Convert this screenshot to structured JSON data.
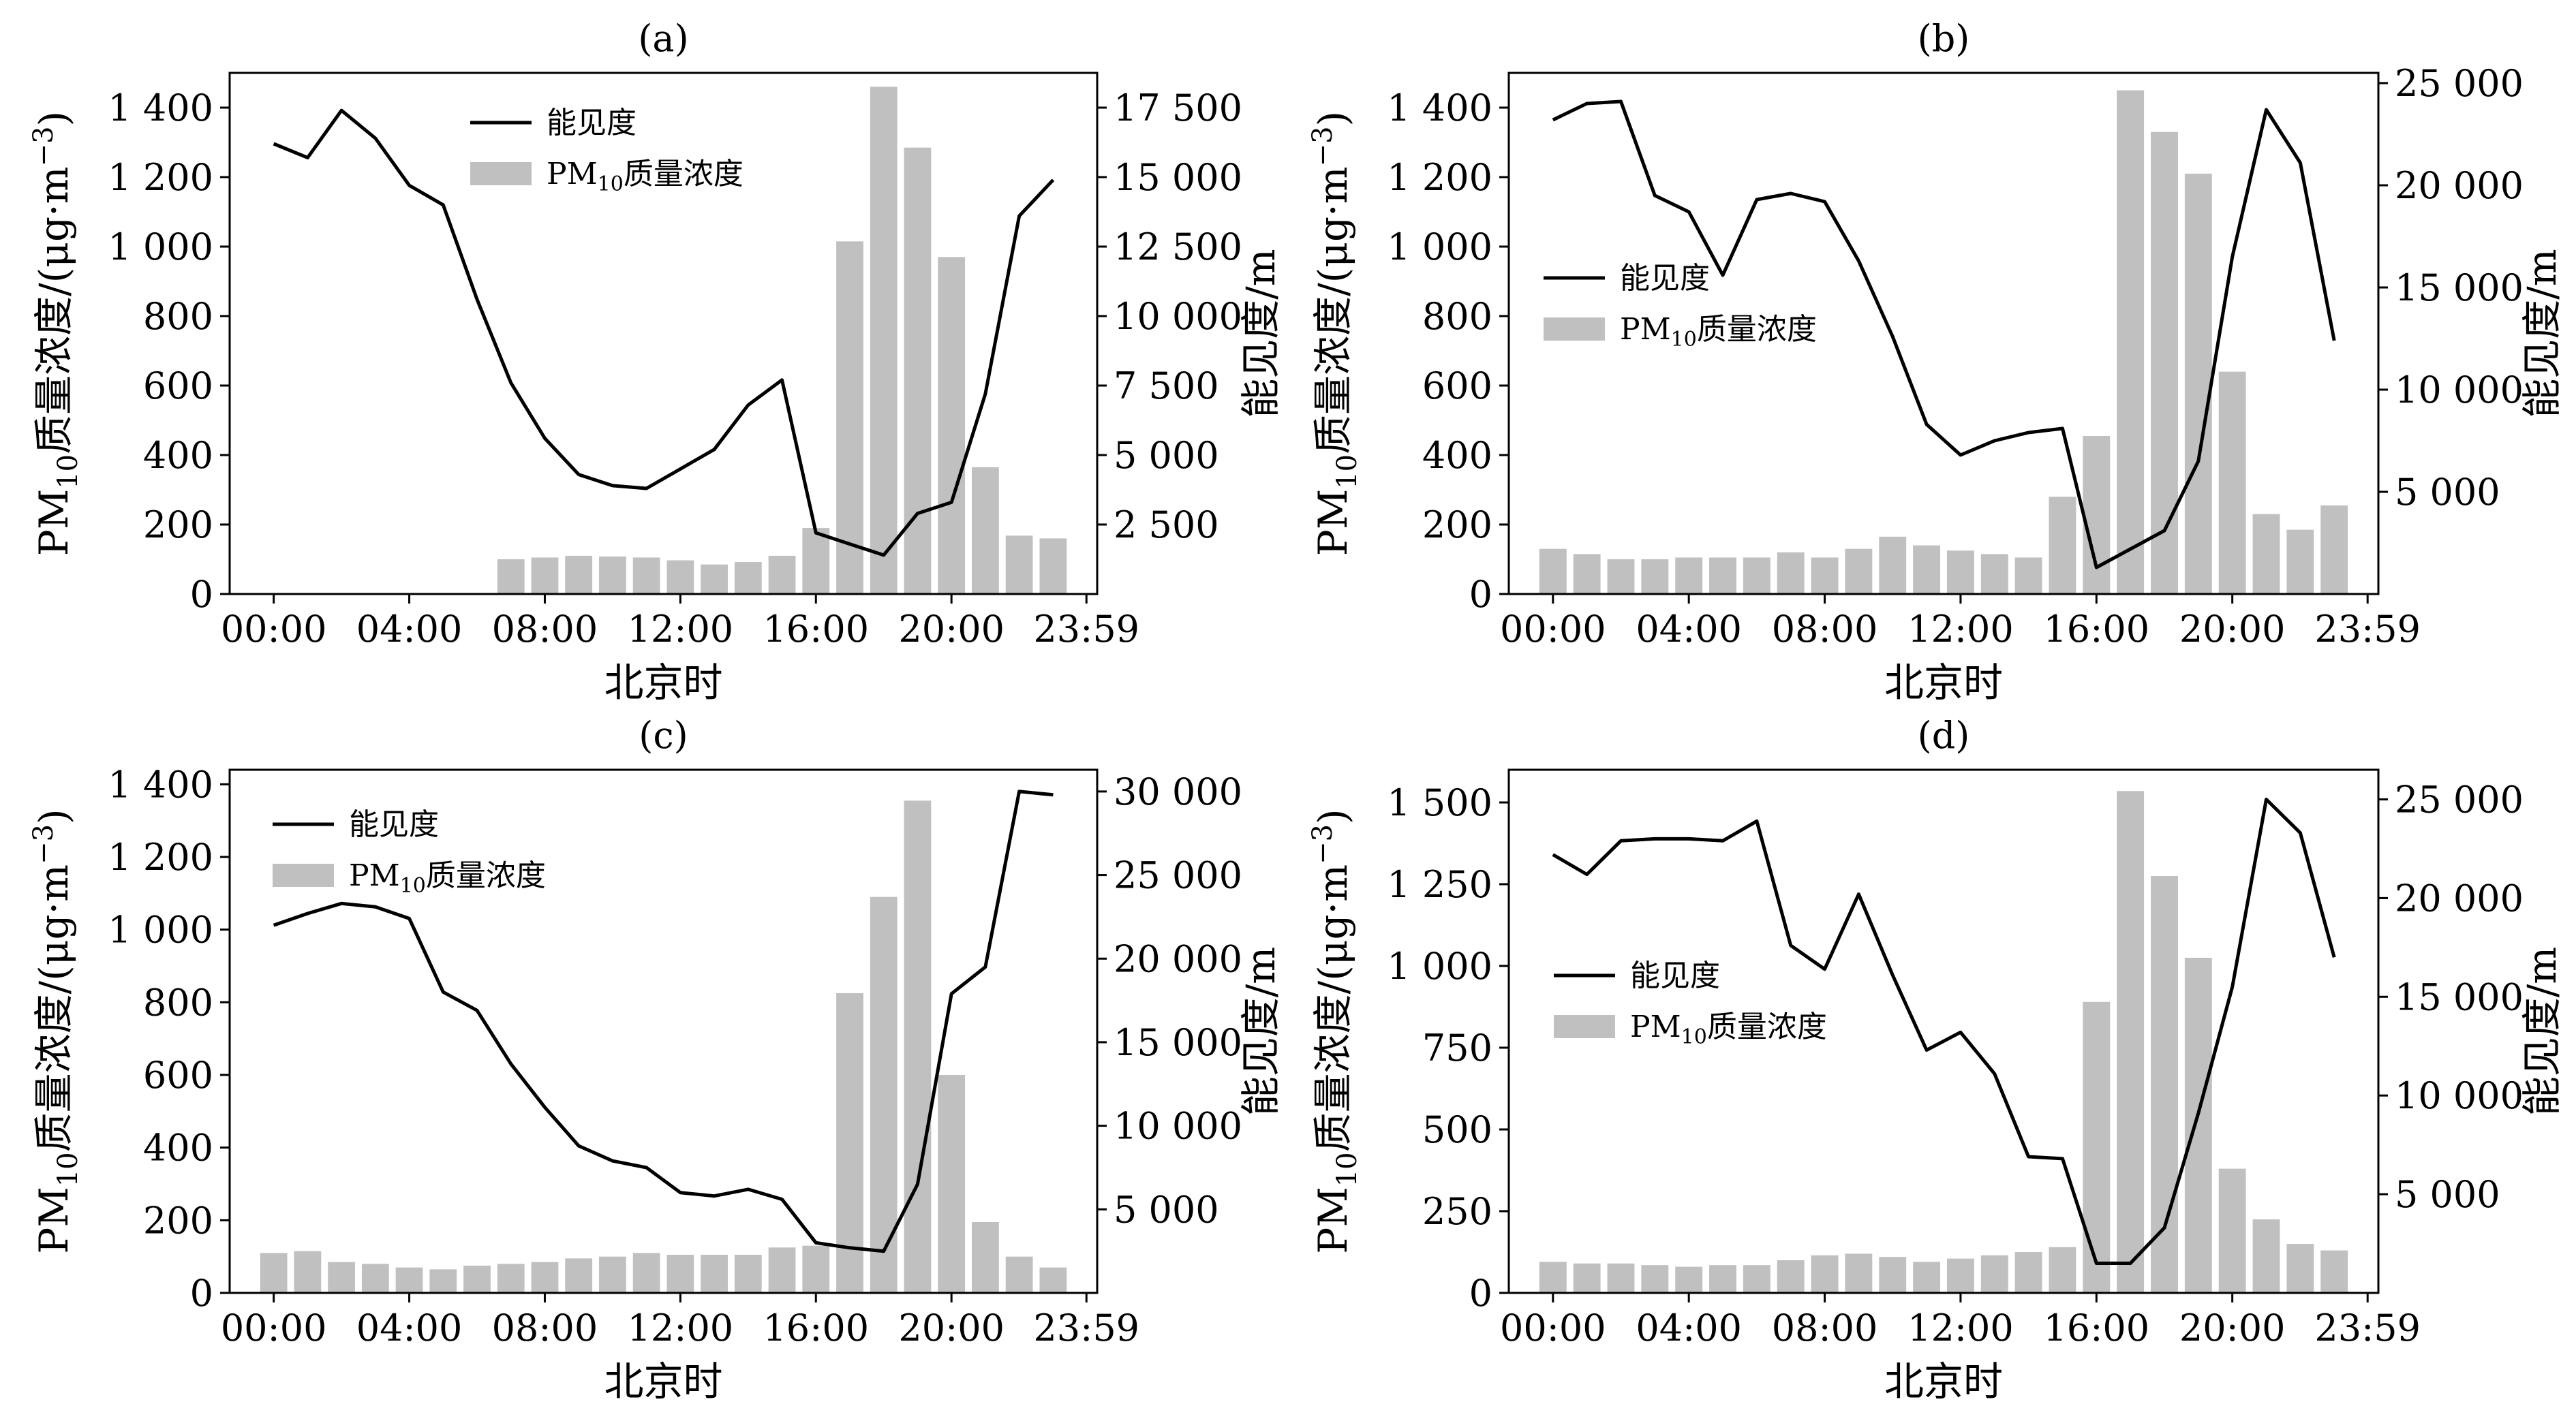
{
  "common": {
    "xlabel": "北京时",
    "ylabel_left_main": "PM",
    "ylabel_left_sub": "10",
    "ylabel_left_rest": "质量浓度/(μg·m",
    "ylabel_left_sup": "−3",
    "ylabel_left_close": ")",
    "ylabel_right": "能见度/m",
    "legend_line": "能见度",
    "legend_bar_main": "PM",
    "legend_bar_sub": "10",
    "legend_bar_rest": "质量浓度",
    "x_ticks": [
      "00:00",
      "04:00",
      "08:00",
      "12:00",
      "16:00",
      "20:00",
      "23:59"
    ],
    "colors": {
      "bar": "#c0c0c0",
      "line": "#000000"
    }
  },
  "chart_data": [
    {
      "type": "bar+line",
      "title": "(a)",
      "xlabel": "北京时",
      "ylabel": "PM10质量浓度/(μg·m−3)",
      "ylabel_right": "能见度/m",
      "x_hours": [
        0,
        1,
        2,
        3,
        4,
        5,
        6,
        7,
        8,
        9,
        10,
        11,
        12,
        13,
        14,
        15,
        16,
        17,
        18,
        19,
        20,
        21,
        22,
        23
      ],
      "pm10": [
        null,
        null,
        null,
        null,
        null,
        null,
        null,
        100,
        105,
        110,
        108,
        105,
        97,
        85,
        92,
        110,
        190,
        1015,
        1460,
        1285,
        970,
        365,
        168,
        160
      ],
      "visibility": [
        16200,
        15700,
        17400,
        16400,
        14700,
        14000,
        10600,
        7600,
        5600,
        4300,
        3900,
        3800,
        4500,
        5200,
        6800,
        7700,
        2200,
        1800,
        1400,
        2900,
        3300,
        7200,
        13600,
        14900
      ],
      "y_left": {
        "range": [
          0,
          1500
        ],
        "ticks": [
          0,
          200,
          400,
          600,
          800,
          1000,
          1200,
          1400
        ],
        "labels": [
          "0",
          "200",
          "400",
          "600",
          "800",
          "1 000",
          "1 200",
          "1 400"
        ]
      },
      "y_right": {
        "range": [
          0,
          18750
        ],
        "ticks": [
          2500,
          5000,
          7500,
          10000,
          12500,
          15000,
          17500
        ],
        "labels": [
          "2 500",
          "5 000",
          "7 500",
          "10 000",
          "12 500",
          "15 000",
          "17 500"
        ]
      },
      "legend": {
        "position": "top-center"
      }
    },
    {
      "type": "bar+line",
      "title": "(b)",
      "xlabel": "北京时",
      "ylabel": "PM10质量浓度/(μg·m−3)",
      "ylabel_right": "能见度/m",
      "x_hours": [
        0,
        1,
        2,
        3,
        4,
        5,
        6,
        7,
        8,
        9,
        10,
        11,
        12,
        13,
        14,
        15,
        16,
        17,
        18,
        19,
        20,
        21,
        22,
        23
      ],
      "pm10": [
        130,
        115,
        100,
        100,
        105,
        105,
        105,
        120,
        105,
        130,
        165,
        140,
        125,
        115,
        105,
        280,
        455,
        1450,
        1330,
        1210,
        640,
        230,
        185,
        255
      ],
      "visibility": [
        23200,
        24000,
        24100,
        19500,
        18700,
        15600,
        19300,
        19600,
        19200,
        16300,
        12600,
        8300,
        6800,
        7500,
        7900,
        8100,
        1300,
        2200,
        3100,
        6500,
        16500,
        23700,
        21100,
        12400
      ],
      "y_left": {
        "range": [
          0,
          1500
        ],
        "ticks": [
          0,
          200,
          400,
          600,
          800,
          1000,
          1200,
          1400
        ],
        "labels": [
          "0",
          "200",
          "400",
          "600",
          "800",
          "1 000",
          "1 200",
          "1 400"
        ]
      },
      "y_right": {
        "range": [
          0,
          25500
        ],
        "ticks": [
          5000,
          10000,
          15000,
          20000,
          25000
        ],
        "labels": [
          "5 000",
          "10 000",
          "15 000",
          "20 000",
          "25 000"
        ]
      },
      "legend": {
        "position": "upper-left"
      }
    },
    {
      "type": "bar+line",
      "title": "(c)",
      "xlabel": "北京时",
      "ylabel": "PM10质量浓度/(μg·m−3)",
      "ylabel_right": "能见度/m",
      "x_hours": [
        0,
        1,
        2,
        3,
        4,
        5,
        6,
        7,
        8,
        9,
        10,
        11,
        12,
        13,
        14,
        15,
        16,
        17,
        18,
        19,
        20,
        21,
        22,
        23
      ],
      "pm10": [
        110,
        115,
        85,
        80,
        70,
        65,
        75,
        80,
        85,
        95,
        100,
        110,
        105,
        105,
        105,
        125,
        130,
        825,
        1090,
        1355,
        600,
        195,
        100,
        70
      ],
      "visibility": [
        22000,
        22700,
        23300,
        23100,
        22400,
        18000,
        16900,
        13700,
        11100,
        8800,
        7900,
        7500,
        6000,
        5800,
        6200,
        5600,
        3000,
        2700,
        2500,
        6500,
        17900,
        19500,
        30000,
        29800
      ],
      "y_left": {
        "range": [
          0,
          1440
        ],
        "ticks": [
          0,
          200,
          400,
          600,
          800,
          1000,
          1200,
          1400
        ],
        "labels": [
          "0",
          "200",
          "400",
          "600",
          "800",
          "1 000",
          "1 200",
          "1 400"
        ]
      },
      "y_right": {
        "range": [
          0,
          31300
        ],
        "ticks": [
          5000,
          10000,
          15000,
          20000,
          25000,
          30000
        ],
        "labels": [
          "5 000",
          "10 000",
          "15 000",
          "20 000",
          "25 000",
          "30 000"
        ]
      },
      "legend": {
        "position": "upper-left"
      }
    },
    {
      "type": "bar+line",
      "title": "(d)",
      "xlabel": "北京时",
      "ylabel": "PM10质量浓度/(μg·m−3)",
      "ylabel_right": "能见度/m",
      "x_hours": [
        0,
        1,
        2,
        3,
        4,
        5,
        6,
        7,
        8,
        9,
        10,
        11,
        12,
        13,
        14,
        15,
        16,
        17,
        18,
        19,
        20,
        21,
        22,
        23
      ],
      "pm10": [
        95,
        90,
        90,
        85,
        80,
        85,
        85,
        100,
        115,
        120,
        110,
        95,
        105,
        115,
        125,
        140,
        890,
        1535,
        1275,
        1025,
        380,
        225,
        150,
        130
      ],
      "visibility": [
        22200,
        21200,
        22900,
        23000,
        23000,
        22900,
        23900,
        17600,
        16400,
        20200,
        16100,
        12300,
        13200,
        11100,
        6900,
        6800,
        1500,
        1500,
        3300,
        9100,
        15500,
        25000,
        23300,
        17000
      ],
      "y_left": {
        "range": [
          0,
          1600
        ],
        "ticks": [
          0,
          250,
          500,
          750,
          1000,
          1250,
          1500
        ],
        "labels": [
          "0",
          "250",
          "500",
          "750",
          "1 000",
          "1 250",
          "1 500"
        ]
      },
      "y_right": {
        "range": [
          0,
          26500
        ],
        "ticks": [
          5000,
          10000,
          15000,
          20000,
          25000
        ],
        "labels": [
          "5 000",
          "10 000",
          "15 000",
          "20 000",
          "25 000"
        ]
      },
      "legend": {
        "position": "center-left"
      }
    }
  ]
}
